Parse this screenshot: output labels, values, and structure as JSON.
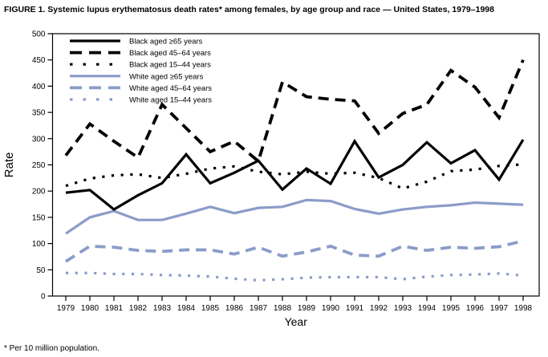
{
  "title": "FIGURE 1. Systemic lupus erythematosus death rates* among females, by age group and race — United States, 1979–1998",
  "footnote": "* Per 10 million population.",
  "colors": {
    "black_series": "#000000",
    "white_series": "#8b9cc9",
    "axis": "#000000",
    "background": "#ffffff"
  },
  "chart_data": {
    "type": "line",
    "title": "Systemic lupus erythematosus death rates among females, by age group and race, United States, 1979–1998",
    "xlabel": "Year",
    "ylabel": "Rate",
    "x": [
      1979,
      1980,
      1981,
      1982,
      1983,
      1984,
      1985,
      1986,
      1987,
      1988,
      1989,
      1990,
      1991,
      1992,
      1993,
      1994,
      1995,
      1996,
      1997,
      1998
    ],
    "ylim": [
      0,
      500
    ],
    "y_ticks": [
      0,
      50,
      100,
      150,
      200,
      250,
      300,
      350,
      400,
      450,
      500
    ],
    "grid": false,
    "legend_position": "inside-top-left",
    "series": [
      {
        "name": "Black aged ≥65 years",
        "color": "#000000",
        "style": "solid",
        "values": [
          197,
          202,
          165,
          192,
          215,
          270,
          215,
          235,
          258,
          203,
          243,
          214,
          295,
          226,
          250,
          293,
          253,
          278,
          222,
          298
        ]
      },
      {
        "name": "Black aged 45–64 years",
        "color": "#000000",
        "style": "dashed",
        "values": [
          268,
          328,
          295,
          264,
          365,
          320,
          275,
          295,
          257,
          408,
          380,
          375,
          372,
          310,
          348,
          365,
          430,
          398,
          340,
          450
        ]
      },
      {
        "name": "Black aged 15–44 years",
        "color": "#000000",
        "style": "dotted",
        "values": [
          210,
          224,
          230,
          232,
          225,
          233,
          243,
          247,
          237,
          232,
          237,
          233,
          235,
          225,
          205,
          218,
          238,
          241,
          248,
          251
        ]
      },
      {
        "name": "White aged ≥65 years",
        "color": "#8b9cc9",
        "style": "solid",
        "values": [
          119,
          150,
          162,
          145,
          145,
          157,
          170,
          158,
          168,
          170,
          183,
          181,
          166,
          157,
          165,
          170,
          173,
          178,
          176,
          174
        ]
      },
      {
        "name": "White aged 45–64 years",
        "color": "#8b9cc9",
        "style": "dashed",
        "values": [
          66,
          95,
          93,
          87,
          85,
          88,
          88,
          80,
          93,
          76,
          84,
          95,
          78,
          76,
          95,
          87,
          93,
          91,
          94,
          105
        ]
      },
      {
        "name": "White aged 15–44 years",
        "color": "#8b9cc9",
        "style": "dotted",
        "values": [
          44,
          44,
          42,
          42,
          40,
          39,
          37,
          33,
          30,
          32,
          35,
          36,
          36,
          36,
          32,
          37,
          40,
          41,
          43,
          39
        ]
      }
    ]
  }
}
